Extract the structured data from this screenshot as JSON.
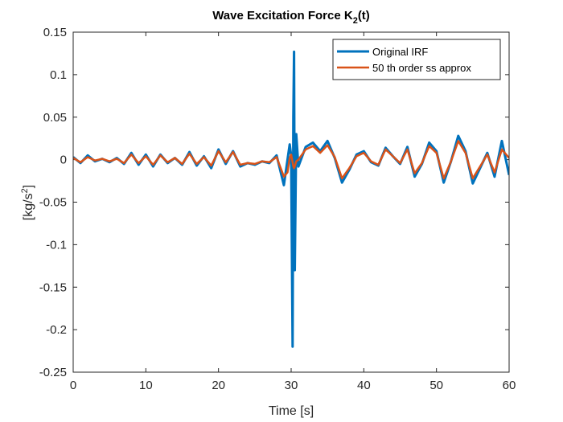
{
  "chart_data": {
    "type": "line",
    "title": [
      "Wave Excitation Force K",
      "2",
      "(t)"
    ],
    "xlabel": "Time [s]",
    "ylabel": [
      "[kg/s",
      "2",
      "]"
    ],
    "x": [
      0,
      1,
      2,
      3,
      4,
      5,
      6,
      7,
      8,
      9,
      10,
      11,
      12,
      13,
      14,
      15,
      16,
      17,
      18,
      19,
      20,
      21,
      22,
      23,
      24,
      25,
      26,
      27,
      28,
      29,
      29.5,
      29.8,
      30,
      30.2,
      30.3,
      30.4,
      30.5,
      30.7,
      31,
      32,
      33,
      34,
      35,
      36,
      37,
      38,
      39,
      40,
      41,
      42,
      43,
      44,
      45,
      46,
      47,
      48,
      49,
      50,
      51,
      52,
      53,
      54,
      55,
      56,
      57,
      58,
      59,
      60
    ],
    "series": [
      {
        "name": "Original IRF",
        "color": "#0072bd",
        "values": [
          0.003,
          -0.004,
          0.005,
          -0.002,
          0.001,
          -0.003,
          0.002,
          -0.005,
          0.008,
          -0.006,
          0.006,
          -0.008,
          0.006,
          -0.004,
          0.002,
          -0.006,
          0.009,
          -0.007,
          0.004,
          -0.01,
          0.012,
          -0.005,
          0.01,
          -0.008,
          -0.004,
          -0.006,
          -0.002,
          -0.004,
          0.005,
          -0.03,
          0,
          0.018,
          0.005,
          -0.22,
          0.05,
          0.127,
          -0.13,
          0.03,
          -0.008,
          0.015,
          0.02,
          0.01,
          0.022,
          0.002,
          -0.027,
          -0.012,
          0.006,
          0.01,
          -0.003,
          -0.007,
          0.014,
          0.004,
          -0.005,
          0.015,
          -0.02,
          -0.005,
          0.02,
          0.01,
          -0.027,
          -0.002,
          0.028,
          0.01,
          -0.028,
          -0.01,
          0.008,
          -0.02,
          0.022,
          -0.018
        ]
      },
      {
        "name": "50 th order ss approx",
        "color": "#d95319",
        "values": [
          0.002,
          -0.003,
          0.003,
          -0.001,
          0.001,
          -0.002,
          0.001,
          -0.004,
          0.006,
          -0.004,
          0.004,
          -0.006,
          0.005,
          -0.003,
          0.002,
          -0.005,
          0.007,
          -0.005,
          0.003,
          -0.007,
          0.01,
          -0.003,
          0.009,
          -0.006,
          -0.004,
          -0.005,
          -0.002,
          -0.003,
          0.003,
          -0.02,
          -0.015,
          0.002,
          0.006,
          -0.003,
          -0.008,
          -0.01,
          -0.008,
          -0.002,
          0,
          0.012,
          0.016,
          0.008,
          0.017,
          0.003,
          -0.022,
          -0.01,
          0.004,
          0.008,
          -0.002,
          -0.006,
          0.012,
          0.004,
          -0.004,
          0.012,
          -0.016,
          -0.004,
          0.016,
          0.008,
          -0.022,
          -0.002,
          0.022,
          0.008,
          -0.022,
          -0.008,
          0.006,
          -0.015,
          0.012,
          0.002
        ]
      }
    ],
    "xlim": [
      0,
      60
    ],
    "xticks": [
      0,
      10,
      20,
      30,
      40,
      50,
      60
    ],
    "ylim": [
      -0.25,
      0.15
    ],
    "yticks": [
      -0.25,
      -0.2,
      -0.15,
      -0.1,
      -0.05,
      0,
      0.05,
      0.1,
      0.15
    ],
    "grid": false,
    "legend": "northeast"
  }
}
